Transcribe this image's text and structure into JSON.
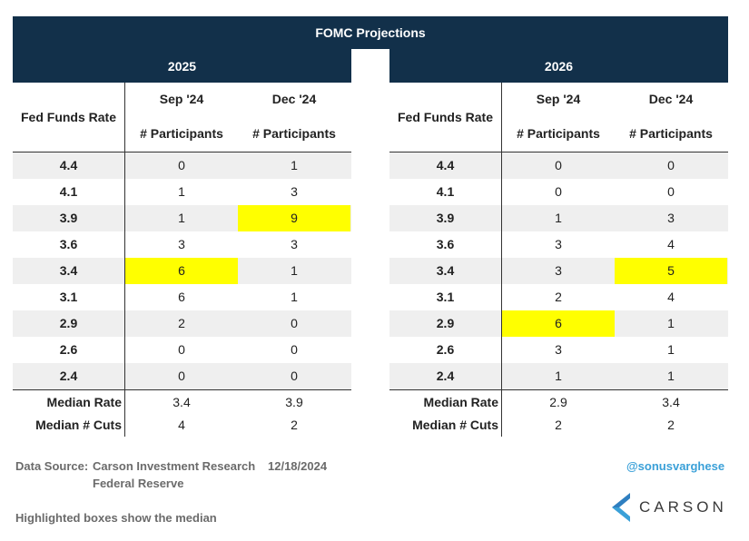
{
  "title": "FOMC Projections",
  "row_header": "Fed Funds Rate",
  "participants_label": "# Participants",
  "rates": [
    "4.4",
    "4.1",
    "3.9",
    "3.6",
    "3.4",
    "3.1",
    "2.9",
    "2.6",
    "2.4"
  ],
  "summary_labels": [
    "Median Rate",
    "Median # Cuts"
  ],
  "panels": [
    {
      "year": "2025",
      "columns": [
        {
          "meeting": "Sep '24",
          "values": [
            "0",
            "1",
            "1",
            "3",
            "6",
            "6",
            "2",
            "0",
            "0"
          ],
          "median_index": 4,
          "median_rate": "3.4",
          "median_cuts": "4"
        },
        {
          "meeting": "Dec '24",
          "values": [
            "1",
            "3",
            "9",
            "3",
            "1",
            "1",
            "0",
            "0",
            "0"
          ],
          "median_index": 2,
          "median_rate": "3.9",
          "median_cuts": "2"
        }
      ]
    },
    {
      "year": "2026",
      "columns": [
        {
          "meeting": "Sep '24",
          "values": [
            "0",
            "0",
            "1",
            "3",
            "3",
            "2",
            "6",
            "3",
            "1"
          ],
          "median_index": 6,
          "median_rate": "2.9",
          "median_cuts": "2"
        },
        {
          "meeting": "Dec '24",
          "values": [
            "0",
            "0",
            "3",
            "4",
            "5",
            "4",
            "1",
            "1",
            "1"
          ],
          "median_index": 4,
          "median_rate": "3.4",
          "median_cuts": "2"
        }
      ]
    }
  ],
  "footer": {
    "source_label": "Data Source:",
    "source_line1": "Carson Investment Research",
    "date": "12/18/2024",
    "source_line2": "Federal Reserve",
    "note": "Highlighted boxes show the median",
    "handle": "@sonusvarghese",
    "logo_text": "CARSON"
  },
  "colors": {
    "header_bg": "#12304a",
    "highlight": "#ffff00",
    "shade": "#efefef",
    "handle": "#3aa0d8"
  }
}
